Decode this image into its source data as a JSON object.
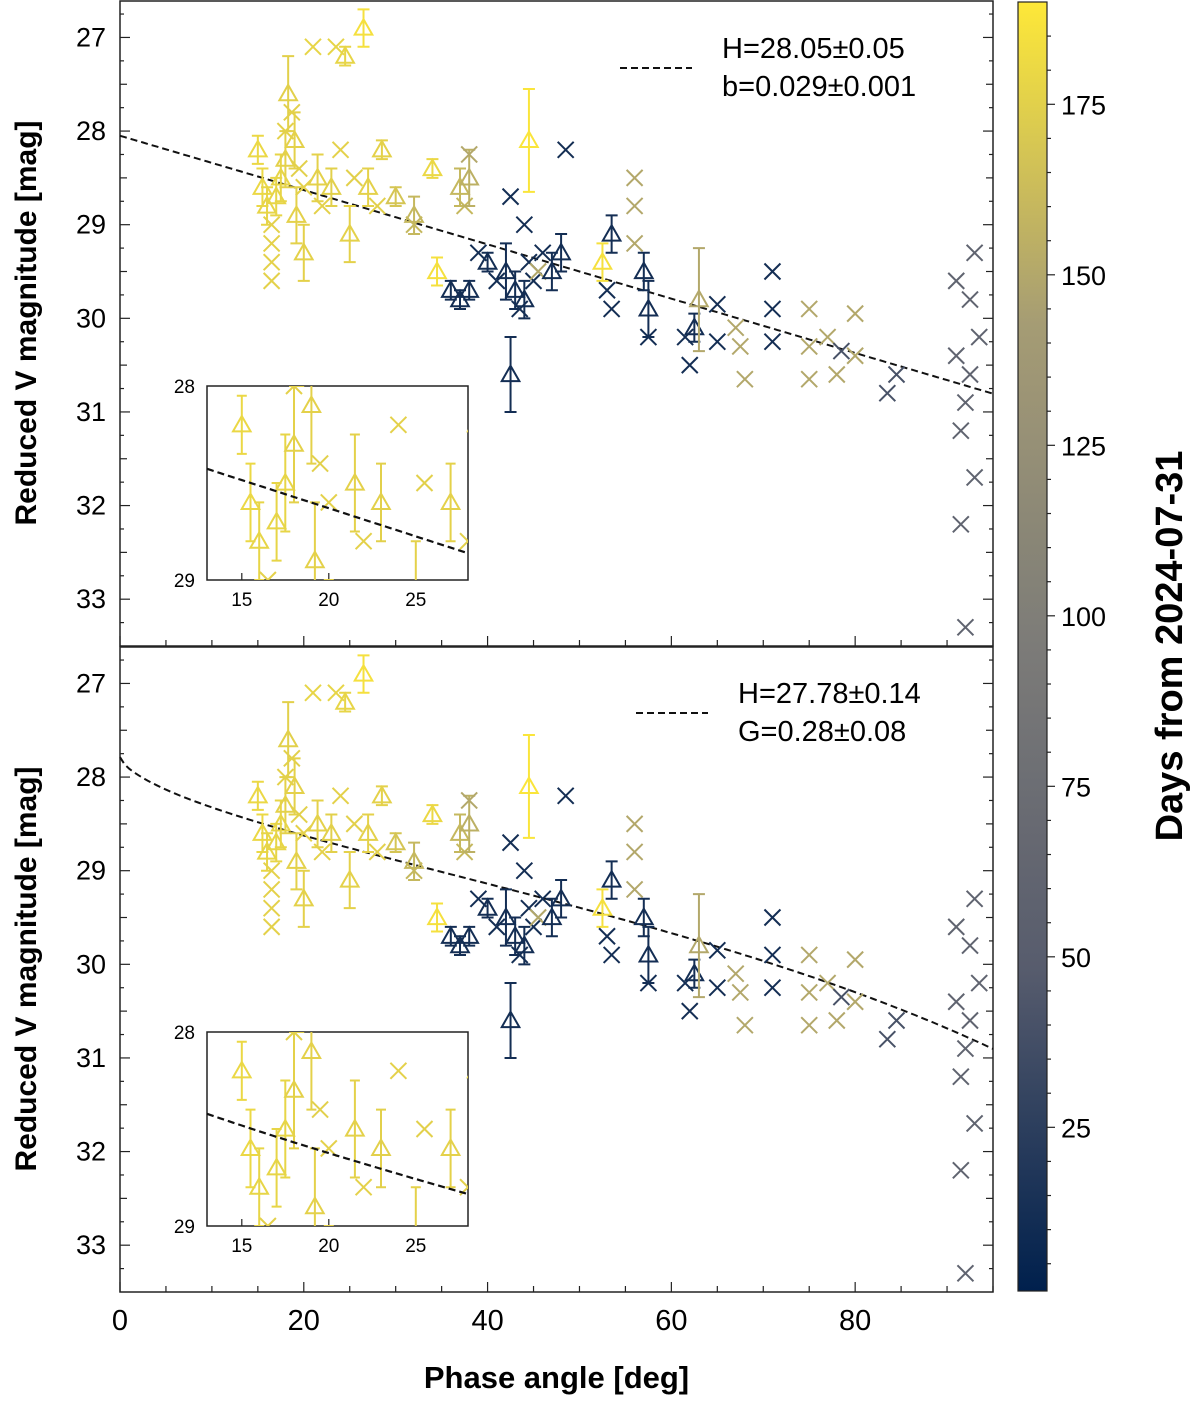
{
  "chart_data": {
    "type": "scatter",
    "xlabel": "Phase angle [deg]",
    "ylabel": "Reduced V magnitude [mag]",
    "xlim": [
      0,
      95
    ],
    "ylim": [
      26.6,
      33.5
    ],
    "y_inverted": true,
    "xticks": [
      0,
      20,
      40,
      60,
      80
    ],
    "yticks": [
      27,
      28,
      29,
      30,
      31,
      32,
      33
    ],
    "colorbar": {
      "label": "Days from 2024-07-31",
      "range": [
        1,
        190
      ],
      "ticks": [
        25,
        50,
        75,
        100,
        125,
        150,
        175
      ],
      "colormap": "cividis",
      "colors": [
        "#00204d",
        "#575c6d",
        "#7c7b78",
        "#a59c74",
        "#fee838"
      ]
    },
    "markers": {
      "triangle": "observations with error bars",
      "cross": "observations",
      "circle": "observations"
    },
    "panels": [
      {
        "id": "top",
        "model": "linear",
        "legend": [
          "H=28.05±0.05",
          "b=0.029±0.001"
        ],
        "H": 28.05,
        "b": 0.029,
        "inset": {
          "xlim": [
            13,
            28
          ],
          "ylim": [
            28,
            29
          ],
          "xticks": [
            15,
            20,
            25
          ],
          "yticks": [
            28,
            29
          ]
        }
      },
      {
        "id": "bottom",
        "model": "HG",
        "legend": [
          "H=27.78±0.14",
          "G=0.28±0.08"
        ],
        "H": 27.78,
        "G": 0.28,
        "inset": {
          "xlim": [
            13,
            28
          ],
          "ylim": [
            28,
            29
          ],
          "xticks": [
            15,
            20,
            25
          ],
          "yticks": [
            28,
            29
          ]
        }
      }
    ],
    "points": [
      {
        "x": 15,
        "y": 28.2,
        "t": 180,
        "m": "tri",
        "e": 0.15
      },
      {
        "x": 15.5,
        "y": 28.6,
        "t": 180,
        "m": "tri",
        "e": 0.2
      },
      {
        "x": 16,
        "y": 28.8,
        "t": 178,
        "m": "tri",
        "e": 0.2
      },
      {
        "x": 16.5,
        "y": 29.0,
        "t": 176,
        "m": "x"
      },
      {
        "x": 16.5,
        "y": 29.2,
        "t": 176,
        "m": "x"
      },
      {
        "x": 16.5,
        "y": 29.4,
        "t": 176,
        "m": "x"
      },
      {
        "x": 16.5,
        "y": 29.6,
        "t": 176,
        "m": "x"
      },
      {
        "x": 17,
        "y": 28.7,
        "t": 178,
        "m": "tri",
        "e": 0.2
      },
      {
        "x": 17.5,
        "y": 28.5,
        "t": 178,
        "m": "tri",
        "e": 0.25
      },
      {
        "x": 18,
        "y": 28.3,
        "t": 176,
        "m": "tri",
        "e": 0.3
      },
      {
        "x": 18,
        "y": 28.0,
        "t": 176,
        "m": "x"
      },
      {
        "x": 18.3,
        "y": 27.6,
        "t": 175,
        "m": "tri",
        "e": 0.4
      },
      {
        "x": 18.7,
        "y": 27.8,
        "t": 175,
        "m": "x"
      },
      {
        "x": 19,
        "y": 28.1,
        "t": 176,
        "m": "tri",
        "e": 0.3
      },
      {
        "x": 19.2,
        "y": 28.9,
        "t": 176,
        "m": "tri",
        "e": 0.3
      },
      {
        "x": 19.5,
        "y": 28.4,
        "t": 175,
        "m": "x"
      },
      {
        "x": 20,
        "y": 29.3,
        "t": 176,
        "m": "tri",
        "e": 0.3
      },
      {
        "x": 20,
        "y": 28.6,
        "t": 176,
        "m": "x"
      },
      {
        "x": 21,
        "y": 27.1,
        "t": 178,
        "m": "x"
      },
      {
        "x": 21.5,
        "y": 28.5,
        "t": 176,
        "m": "tri",
        "e": 0.25
      },
      {
        "x": 22,
        "y": 28.8,
        "t": 176,
        "m": "x"
      },
      {
        "x": 23,
        "y": 28.6,
        "t": 175,
        "m": "tri",
        "e": 0.2
      },
      {
        "x": 23.5,
        "y": 27.1,
        "t": 178,
        "m": "x"
      },
      {
        "x": 24,
        "y": 28.2,
        "t": 176,
        "m": "x"
      },
      {
        "x": 24.5,
        "y": 27.2,
        "t": 178,
        "m": "tri",
        "e": 0.1
      },
      {
        "x": 25,
        "y": 29.1,
        "t": 176,
        "m": "tri",
        "e": 0.3
      },
      {
        "x": 25.5,
        "y": 28.5,
        "t": 175,
        "m": "x"
      },
      {
        "x": 26.5,
        "y": 26.9,
        "t": 185,
        "m": "tri",
        "e": 0.2
      },
      {
        "x": 27,
        "y": 28.6,
        "t": 176,
        "m": "tri",
        "e": 0.2
      },
      {
        "x": 28,
        "y": 28.8,
        "t": 175,
        "m": "x"
      },
      {
        "x": 28.5,
        "y": 28.2,
        "t": 176,
        "m": "tri",
        "e": 0.1
      },
      {
        "x": 30,
        "y": 28.7,
        "t": 168,
        "m": "tri",
        "e": 0.1
      },
      {
        "x": 32,
        "y": 28.9,
        "t": 160,
        "m": "tri",
        "e": 0.2
      },
      {
        "x": 32,
        "y": 29.0,
        "t": 160,
        "m": "x"
      },
      {
        "x": 34,
        "y": 28.4,
        "t": 180,
        "m": "tri",
        "e": 0.1
      },
      {
        "x": 34.5,
        "y": 29.5,
        "t": 185,
        "m": "tri",
        "e": 0.15
      },
      {
        "x": 37,
        "y": 28.6,
        "t": 160,
        "m": "tri",
        "e": 0.2
      },
      {
        "x": 37.5,
        "y": 28.8,
        "t": 160,
        "m": "x"
      },
      {
        "x": 38,
        "y": 28.5,
        "t": 155,
        "m": "tri",
        "e": 0.3
      },
      {
        "x": 38,
        "y": 28.25,
        "t": 150,
        "m": "x"
      },
      {
        "x": 36,
        "y": 29.7,
        "t": 12,
        "m": "tri",
        "e": 0.1
      },
      {
        "x": 37,
        "y": 29.8,
        "t": 12,
        "m": "tri",
        "e": 0.1
      },
      {
        "x": 38,
        "y": 29.7,
        "t": 12,
        "m": "tri",
        "e": 0.1
      },
      {
        "x": 39,
        "y": 29.3,
        "t": 12,
        "m": "x"
      },
      {
        "x": 40,
        "y": 29.4,
        "t": 12,
        "m": "tri",
        "e": 0.1
      },
      {
        "x": 41,
        "y": 29.6,
        "t": 12,
        "m": "x"
      },
      {
        "x": 42,
        "y": 29.5,
        "t": 12,
        "m": "tri",
        "e": 0.3
      },
      {
        "x": 42.5,
        "y": 30.6,
        "t": 12,
        "m": "tri",
        "e": 0.4
      },
      {
        "x": 42.5,
        "y": 28.7,
        "t": 12,
        "m": "x"
      },
      {
        "x": 43,
        "y": 29.7,
        "t": 12,
        "m": "tri",
        "e": 0.2
      },
      {
        "x": 43.5,
        "y": 29.9,
        "t": 12,
        "m": "x"
      },
      {
        "x": 44,
        "y": 29.8,
        "t": 12,
        "m": "tri",
        "e": 0.2
      },
      {
        "x": 44,
        "y": 29.0,
        "t": 12,
        "m": "x"
      },
      {
        "x": 44.5,
        "y": 28.1,
        "t": 188,
        "m": "tri",
        "e": 0.55
      },
      {
        "x": 44.5,
        "y": 29.4,
        "t": 12,
        "m": "x"
      },
      {
        "x": 45,
        "y": 29.6,
        "t": 12,
        "m": "x"
      },
      {
        "x": 45.5,
        "y": 29.5,
        "t": 150,
        "m": "x"
      },
      {
        "x": 46,
        "y": 29.3,
        "t": 12,
        "m": "x"
      },
      {
        "x": 47,
        "y": 29.5,
        "t": 12,
        "m": "tri",
        "e": 0.2
      },
      {
        "x": 48,
        "y": 29.3,
        "t": 12,
        "m": "tri",
        "e": 0.2
      },
      {
        "x": 48.5,
        "y": 28.2,
        "t": 12,
        "m": "x"
      },
      {
        "x": 52.5,
        "y": 29.4,
        "t": 185,
        "m": "tri",
        "e": 0.2
      },
      {
        "x": 53,
        "y": 29.7,
        "t": 12,
        "m": "x"
      },
      {
        "x": 53.5,
        "y": 29.1,
        "t": 12,
        "m": "tri",
        "e": 0.2
      },
      {
        "x": 53.5,
        "y": 29.9,
        "t": 12,
        "m": "x"
      },
      {
        "x": 56,
        "y": 28.5,
        "t": 150,
        "m": "x"
      },
      {
        "x": 56,
        "y": 28.8,
        "t": 150,
        "m": "x"
      },
      {
        "x": 56,
        "y": 29.2,
        "t": 150,
        "m": "x"
      },
      {
        "x": 57,
        "y": 29.5,
        "t": 12,
        "m": "tri",
        "e": 0.2
      },
      {
        "x": 57.5,
        "y": 29.9,
        "t": 12,
        "m": "tri",
        "e": 0.3
      },
      {
        "x": 57.5,
        "y": 30.2,
        "t": 12,
        "m": "x"
      },
      {
        "x": 61.5,
        "y": 30.2,
        "t": 12,
        "m": "x"
      },
      {
        "x": 62,
        "y": 30.5,
        "t": 12,
        "m": "x"
      },
      {
        "x": 62.5,
        "y": 30.1,
        "t": 12,
        "m": "tri",
        "e": 0.15
      },
      {
        "x": 63,
        "y": 29.8,
        "t": 150,
        "m": "tri",
        "e": 0.55
      },
      {
        "x": 65,
        "y": 29.85,
        "t": 12,
        "m": "x"
      },
      {
        "x": 65,
        "y": 30.25,
        "t": 12,
        "m": "x"
      },
      {
        "x": 67,
        "y": 30.1,
        "t": 150,
        "m": "x"
      },
      {
        "x": 67.5,
        "y": 30.3,
        "t": 150,
        "m": "x"
      },
      {
        "x": 68,
        "y": 30.65,
        "t": 150,
        "m": "x"
      },
      {
        "x": 71,
        "y": 29.5,
        "t": 12,
        "m": "x"
      },
      {
        "x": 71,
        "y": 29.9,
        "t": 12,
        "m": "x"
      },
      {
        "x": 71,
        "y": 30.25,
        "t": 12,
        "m": "x"
      },
      {
        "x": 75,
        "y": 29.9,
        "t": 150,
        "m": "x"
      },
      {
        "x": 75,
        "y": 30.3,
        "t": 150,
        "m": "x"
      },
      {
        "x": 75,
        "y": 30.65,
        "t": 150,
        "m": "x"
      },
      {
        "x": 77,
        "y": 30.2,
        "t": 150,
        "m": "x"
      },
      {
        "x": 78,
        "y": 30.6,
        "t": 150,
        "m": "x"
      },
      {
        "x": 78.5,
        "y": 30.35,
        "t": 40,
        "m": "x"
      },
      {
        "x": 80,
        "y": 29.95,
        "t": 150,
        "m": "x"
      },
      {
        "x": 80,
        "y": 30.4,
        "t": 150,
        "m": "x"
      },
      {
        "x": 83.5,
        "y": 30.8,
        "t": 40,
        "m": "x"
      },
      {
        "x": 84.5,
        "y": 30.6,
        "t": 40,
        "m": "x"
      },
      {
        "x": 91,
        "y": 29.6,
        "t": 60,
        "m": "x"
      },
      {
        "x": 91,
        "y": 30.4,
        "t": 60,
        "m": "x"
      },
      {
        "x": 91.5,
        "y": 31.2,
        "t": 60,
        "m": "x"
      },
      {
        "x": 91.5,
        "y": 32.2,
        "t": 60,
        "m": "x"
      },
      {
        "x": 92,
        "y": 30.9,
        "t": 60,
        "m": "x"
      },
      {
        "x": 92.5,
        "y": 29.8,
        "t": 60,
        "m": "x"
      },
      {
        "x": 92.5,
        "y": 30.6,
        "t": 60,
        "m": "x"
      },
      {
        "x": 93,
        "y": 29.3,
        "t": 60,
        "m": "x"
      },
      {
        "x": 93,
        "y": 31.7,
        "t": 60,
        "m": "x"
      },
      {
        "x": 93.5,
        "y": 30.2,
        "t": 60,
        "m": "x"
      },
      {
        "x": 92,
        "y": 33.3,
        "t": 60,
        "m": "x"
      }
    ]
  }
}
